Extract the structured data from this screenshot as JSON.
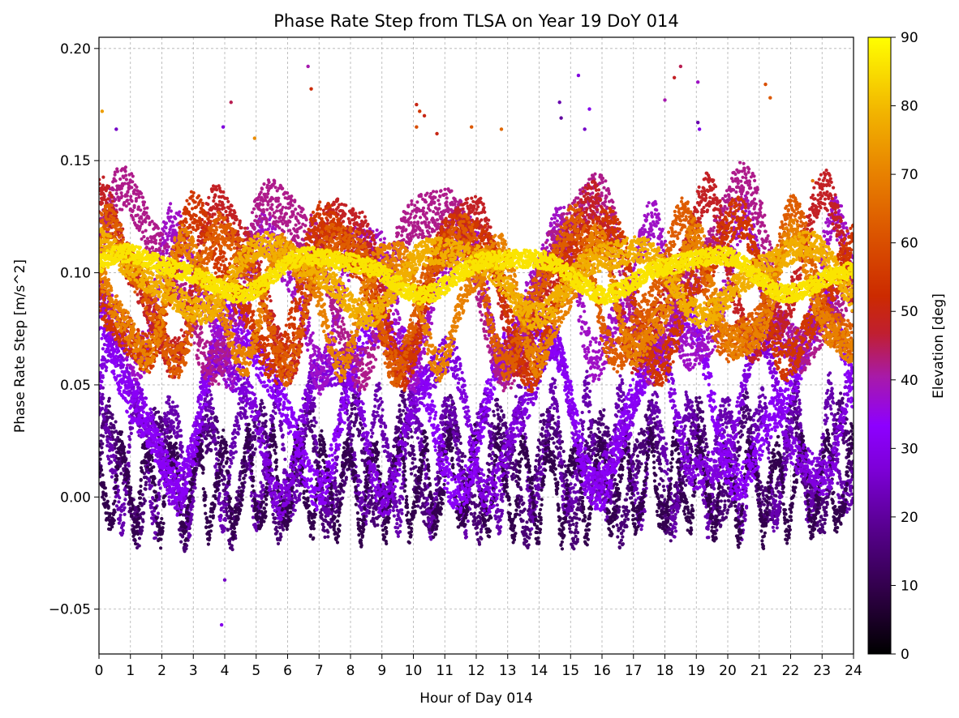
{
  "chart_data": {
    "type": "scatter",
    "title": "Phase Rate Step from TLSA on Year 19 DoY 014",
    "xlabel": "Hour of Day 014",
    "ylabel": "Phase Rate Step [m/s^2]",
    "xlim": [
      0,
      24
    ],
    "ylim": [
      -0.07,
      0.205
    ],
    "x_ticks": [
      0,
      1,
      2,
      3,
      4,
      5,
      6,
      7,
      8,
      9,
      10,
      11,
      12,
      13,
      14,
      15,
      16,
      17,
      18,
      19,
      20,
      21,
      22,
      23,
      24
    ],
    "x_tick_labels": [
      "0",
      "1",
      "2",
      "3",
      "4",
      "5",
      "6",
      "7",
      "8",
      "9",
      "10",
      "11",
      "12",
      "13",
      "14",
      "15",
      "16",
      "17",
      "18",
      "19",
      "20",
      "21",
      "22",
      "23",
      "24"
    ],
    "y_ticks": [
      -0.05,
      0.0,
      0.05,
      0.1,
      0.15,
      0.2
    ],
    "y_tick_labels": [
      "−0.05",
      "0.00",
      "0.05",
      "0.10",
      "0.15",
      "0.20"
    ],
    "grid": true,
    "colorbar": {
      "label": "Elevation [deg]",
      "range": [
        0,
        90
      ],
      "ticks": [
        0,
        10,
        20,
        30,
        40,
        50,
        60,
        70,
        80,
        90
      ],
      "tick_labels": [
        "0",
        "10",
        "20",
        "30",
        "40",
        "50",
        "60",
        "70",
        "80",
        "90"
      ],
      "colormap": "gnuplot"
    },
    "bands": [
      {
        "elev": 15,
        "amp": 0.022,
        "period": 1.55,
        "phase": 0.0,
        "center": 0.012,
        "width": 0.018
      },
      {
        "elev": 22,
        "amp": 0.024,
        "period": 1.1,
        "phase": 0.9,
        "center": 0.018,
        "width": 0.016
      },
      {
        "elev": 10,
        "amp": 0.018,
        "period": 0.8,
        "phase": 2.1,
        "center": 0.005,
        "width": 0.012
      },
      {
        "elev": 28,
        "amp": 0.03,
        "period": 3.4,
        "phase": 0.4,
        "center": 0.035,
        "width": 0.016
      },
      {
        "elev": 32,
        "amp": 0.035,
        "period": 4.6,
        "phase": 1.7,
        "center": 0.045,
        "width": 0.018
      },
      {
        "elev": 38,
        "amp": 0.028,
        "period": 3.0,
        "phase": 2.6,
        "center": 0.09,
        "width": 0.02
      },
      {
        "elev": 42,
        "amp": 0.035,
        "period": 4.8,
        "phase": 0.2,
        "center": 0.1,
        "width": 0.02
      },
      {
        "elev": 48,
        "amp": 0.032,
        "period": 3.8,
        "phase": 1.2,
        "center": 0.098,
        "width": 0.018
      },
      {
        "elev": 55,
        "amp": 0.03,
        "period": 4.2,
        "phase": 3.0,
        "center": 0.093,
        "width": 0.018
      },
      {
        "elev": 63,
        "amp": 0.028,
        "period": 3.6,
        "phase": 0.7,
        "center": 0.092,
        "width": 0.016
      },
      {
        "elev": 70,
        "amp": 0.024,
        "period": 3.2,
        "phase": 2.2,
        "center": 0.088,
        "width": 0.014
      },
      {
        "elev": 78,
        "amp": 0.014,
        "period": 5.5,
        "phase": 1.4,
        "center": 0.098,
        "width": 0.012
      },
      {
        "elev": 86,
        "amp": 0.008,
        "period": 6.0,
        "phase": 0.3,
        "center": 0.1,
        "width": 0.008
      }
    ],
    "outliers": [
      {
        "x": 0.1,
        "y": 0.172,
        "elev": 75
      },
      {
        "x": 0.55,
        "y": 0.164,
        "elev": 25
      },
      {
        "x": 3.95,
        "y": 0.165,
        "elev": 28
      },
      {
        "x": 4.2,
        "y": 0.176,
        "elev": 45
      },
      {
        "x": 4.95,
        "y": 0.16,
        "elev": 72
      },
      {
        "x": 6.65,
        "y": 0.192,
        "elev": 40
      },
      {
        "x": 6.75,
        "y": 0.182,
        "elev": 52
      },
      {
        "x": 10.1,
        "y": 0.175,
        "elev": 50
      },
      {
        "x": 10.2,
        "y": 0.172,
        "elev": 55
      },
      {
        "x": 10.35,
        "y": 0.17,
        "elev": 50
      },
      {
        "x": 10.1,
        "y": 0.165,
        "elev": 60
      },
      {
        "x": 10.75,
        "y": 0.162,
        "elev": 50
      },
      {
        "x": 11.85,
        "y": 0.165,
        "elev": 62
      },
      {
        "x": 12.8,
        "y": 0.164,
        "elev": 65
      },
      {
        "x": 14.65,
        "y": 0.176,
        "elev": 22
      },
      {
        "x": 14.7,
        "y": 0.169,
        "elev": 20
      },
      {
        "x": 15.25,
        "y": 0.188,
        "elev": 28
      },
      {
        "x": 15.45,
        "y": 0.164,
        "elev": 25
      },
      {
        "x": 15.6,
        "y": 0.173,
        "elev": 30
      },
      {
        "x": 18.0,
        "y": 0.177,
        "elev": 40
      },
      {
        "x": 18.3,
        "y": 0.187,
        "elev": 48
      },
      {
        "x": 18.5,
        "y": 0.192,
        "elev": 45
      },
      {
        "x": 19.05,
        "y": 0.185,
        "elev": 38
      },
      {
        "x": 19.05,
        "y": 0.167,
        "elev": 22
      },
      {
        "x": 19.1,
        "y": 0.164,
        "elev": 30
      },
      {
        "x": 21.2,
        "y": 0.184,
        "elev": 60
      },
      {
        "x": 21.35,
        "y": 0.178,
        "elev": 62
      },
      {
        "x": 22.7,
        "y": 0.141,
        "elev": 68
      },
      {
        "x": 3.85,
        "y": -0.01,
        "elev": 30
      },
      {
        "x": 4.0,
        "y": -0.037,
        "elev": 25
      },
      {
        "x": 3.9,
        "y": -0.057,
        "elev": 30
      }
    ]
  }
}
